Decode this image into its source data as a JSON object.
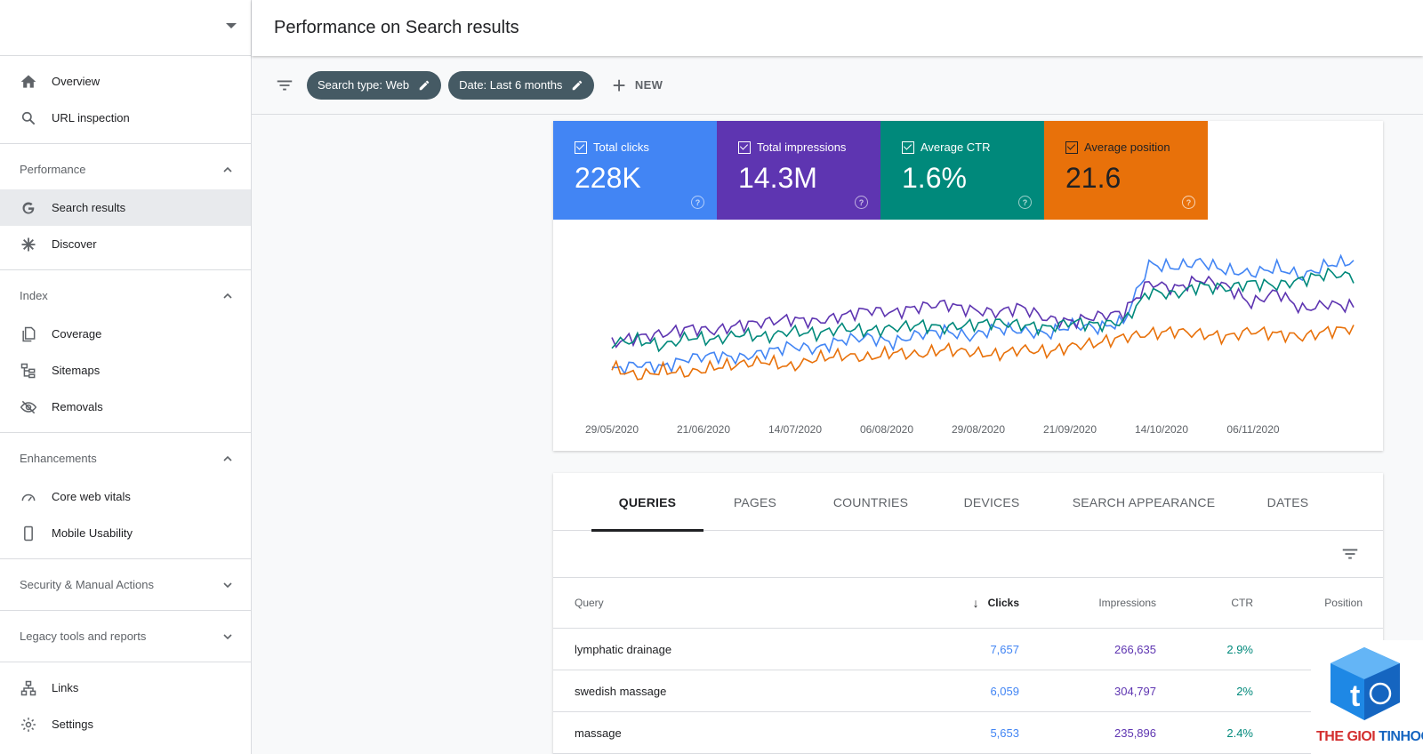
{
  "header": {
    "title": "Performance on Search results"
  },
  "sidebar": {
    "top_items": [
      {
        "label": "Overview",
        "icon": "home-icon"
      },
      {
        "label": "URL inspection",
        "icon": "search-icon"
      }
    ],
    "sections": {
      "performance": {
        "label": "Performance",
        "items": [
          "Search results",
          "Discover"
        ]
      },
      "index": {
        "label": "Index",
        "items": [
          "Coverage",
          "Sitemaps",
          "Removals"
        ]
      },
      "enhancements": {
        "label": "Enhancements",
        "items": [
          "Core web vitals",
          "Mobile Usability"
        ]
      },
      "security": {
        "label": "Security & Manual Actions"
      },
      "legacy": {
        "label": "Legacy tools and reports"
      }
    },
    "bottom_items": [
      "Links",
      "Settings"
    ],
    "active_item": "Search results"
  },
  "filters": {
    "chips": [
      "Search type: Web",
      "Date: Last 6 months"
    ],
    "new_label": "NEW"
  },
  "metrics": [
    {
      "label": "Total clicks",
      "value": "228K",
      "color": "#4285f4"
    },
    {
      "label": "Total impressions",
      "value": "14.3M",
      "color": "#5e35b1"
    },
    {
      "label": "Average CTR",
      "value": "1.6%",
      "color": "#00897b"
    },
    {
      "label": "Average position",
      "value": "21.6",
      "color": "#e8710a"
    }
  ],
  "chart_data": {
    "type": "line",
    "x_tick_labels": [
      "29/05/2020",
      "21/06/2020",
      "14/07/2020",
      "06/08/2020",
      "29/08/2020",
      "21/09/2020",
      "14/10/2020",
      "06/11/2020"
    ],
    "series": [
      {
        "name": "Total clicks",
        "color": "#4285f4",
        "relative_trend": [
          0.18,
          0.22,
          0.2,
          0.26,
          0.28,
          0.26,
          0.3,
          0.34,
          0.32,
          0.38,
          0.4,
          0.36,
          0.42,
          0.44,
          0.4,
          0.46,
          0.44,
          0.42,
          0.48,
          0.46,
          0.5,
          0.88,
          0.86,
          0.9,
          0.84,
          0.82,
          0.86,
          0.8,
          0.88,
          0.9
        ]
      },
      {
        "name": "Total impressions",
        "color": "#5e35b1",
        "relative_trend": [
          0.36,
          0.4,
          0.42,
          0.46,
          0.44,
          0.48,
          0.5,
          0.52,
          0.5,
          0.54,
          0.58,
          0.56,
          0.6,
          0.62,
          0.58,
          0.56,
          0.6,
          0.52,
          0.5,
          0.54,
          0.56,
          0.76,
          0.72,
          0.78,
          0.74,
          0.62,
          0.7,
          0.58,
          0.62,
          0.6
        ]
      },
      {
        "name": "Average CTR",
        "color": "#00897b",
        "relative_trend": [
          0.36,
          0.38,
          0.34,
          0.4,
          0.38,
          0.42,
          0.4,
          0.44,
          0.42,
          0.46,
          0.44,
          0.46,
          0.48,
          0.46,
          0.48,
          0.5,
          0.48,
          0.46,
          0.5,
          0.48,
          0.5,
          0.7,
          0.68,
          0.74,
          0.72,
          0.76,
          0.74,
          0.78,
          0.82,
          0.8
        ]
      },
      {
        "name": "Average position",
        "color": "#e8710a",
        "relative_trend": [
          0.2,
          0.14,
          0.18,
          0.16,
          0.2,
          0.22,
          0.24,
          0.2,
          0.26,
          0.28,
          0.26,
          0.3,
          0.28,
          0.32,
          0.3,
          0.28,
          0.32,
          0.3,
          0.34,
          0.36,
          0.4,
          0.42,
          0.44,
          0.42,
          0.4,
          0.44,
          0.42,
          0.4,
          0.44,
          0.46
        ]
      }
    ]
  },
  "tabs": [
    "QUERIES",
    "PAGES",
    "COUNTRIES",
    "DEVICES",
    "SEARCH APPEARANCE",
    "DATES"
  ],
  "active_tab": "QUERIES",
  "table": {
    "columns": [
      "Query",
      "Clicks",
      "Impressions",
      "CTR",
      "Position"
    ],
    "rows": [
      {
        "query": "lymphatic drainage",
        "clicks": "7,657",
        "impressions": "266,635",
        "ctr": "2.9%",
        "position": ""
      },
      {
        "query": "swedish massage",
        "clicks": "6,059",
        "impressions": "304,797",
        "ctr": "2%",
        "position": ""
      },
      {
        "query": "massage",
        "clicks": "5,653",
        "impressions": "235,896",
        "ctr": "2.4%",
        "position": ""
      }
    ]
  },
  "watermark": {
    "text_a": "THE GIOI ",
    "text_b": "TINHOC"
  }
}
